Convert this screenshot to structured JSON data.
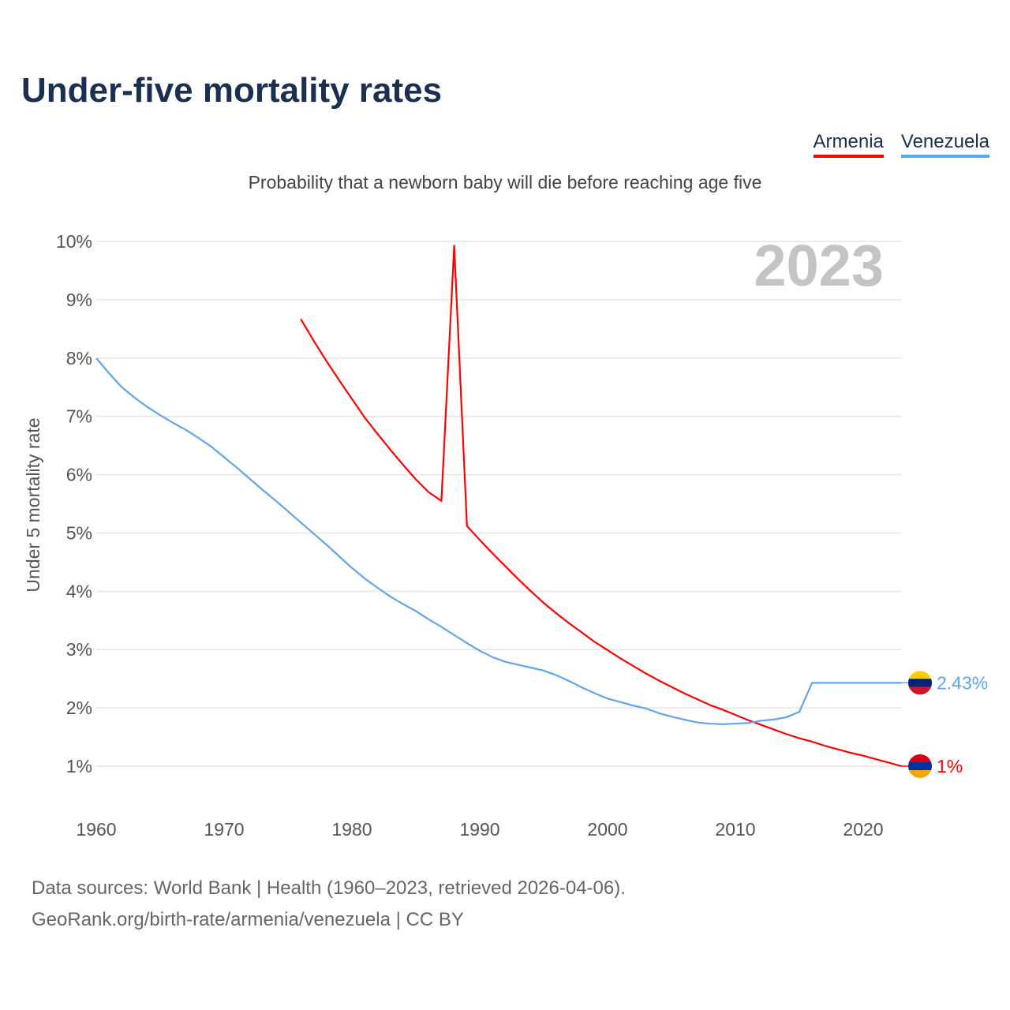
{
  "title": "Under-five mortality rates",
  "subtitle": "Probability that a newborn baby will die before reaching age five",
  "footer": {
    "line1": "Data sources: World Bank | Health (1960–2023, retrieved 2026-04-06).",
    "line2": "GeoRank.org/birth-rate/armenia/venezuela | CC BY"
  },
  "chart_data": {
    "type": "line",
    "title": "Under-five mortality rates",
    "xlabel": "",
    "ylabel": "Under 5 mortality rate",
    "xlim": [
      1960,
      2023
    ],
    "ylim": [
      1,
      10
    ],
    "grid": true,
    "legend_placement": "top-right",
    "year_label": "2023",
    "x_ticks": [
      "1960",
      "1970",
      "1980",
      "1990",
      "2000",
      "2010",
      "2020"
    ],
    "y_ticks": [
      "1%",
      "2%",
      "3%",
      "4%",
      "5%",
      "6%",
      "7%",
      "8%",
      "9%",
      "10%"
    ],
    "series": [
      {
        "name": "Armenia",
        "color": "#ff0000",
        "end_label": "1%",
        "flag": [
          "#d90012",
          "#0033a0",
          "#f2a800"
        ],
        "x_start": 1976,
        "values": [
          8.67,
          8.3,
          7.95,
          7.62,
          7.3,
          6.98,
          6.7,
          6.43,
          6.17,
          5.92,
          5.7,
          5.55,
          9.93,
          5.12,
          4.88,
          4.65,
          4.43,
          4.21,
          4.0,
          3.8,
          3.62,
          3.45,
          3.29,
          3.13,
          2.99,
          2.85,
          2.72,
          2.59,
          2.47,
          2.36,
          2.25,
          2.15,
          2.05,
          1.97,
          1.88,
          1.79,
          1.71,
          1.63,
          1.55,
          1.48,
          1.42,
          1.35,
          1.29,
          1.23,
          1.18,
          1.12,
          1.06,
          1.0
        ]
      },
      {
        "name": "Venezuela",
        "color": "#5da5ec",
        "end_label": "2.43%",
        "flag": [
          "#ffcc00",
          "#00247d",
          "#cf142b"
        ],
        "x_start": 1960,
        "values": [
          8.0,
          7.74,
          7.5,
          7.32,
          7.16,
          7.02,
          6.89,
          6.77,
          6.63,
          6.48,
          6.3,
          6.12,
          5.93,
          5.74,
          5.56,
          5.37,
          5.18,
          4.99,
          4.8,
          4.6,
          4.4,
          4.22,
          4.06,
          3.91,
          3.78,
          3.66,
          3.52,
          3.39,
          3.25,
          3.11,
          2.98,
          2.87,
          2.79,
          2.74,
          2.69,
          2.64,
          2.56,
          2.46,
          2.35,
          2.25,
          2.16,
          2.1,
          2.04,
          1.99,
          1.91,
          1.85,
          1.8,
          1.75,
          1.73,
          1.72,
          1.73,
          1.74,
          1.78,
          1.8,
          1.84,
          1.93,
          2.43,
          2.43,
          2.43,
          2.43,
          2.43,
          2.43,
          2.43,
          2.43
        ]
      }
    ]
  }
}
